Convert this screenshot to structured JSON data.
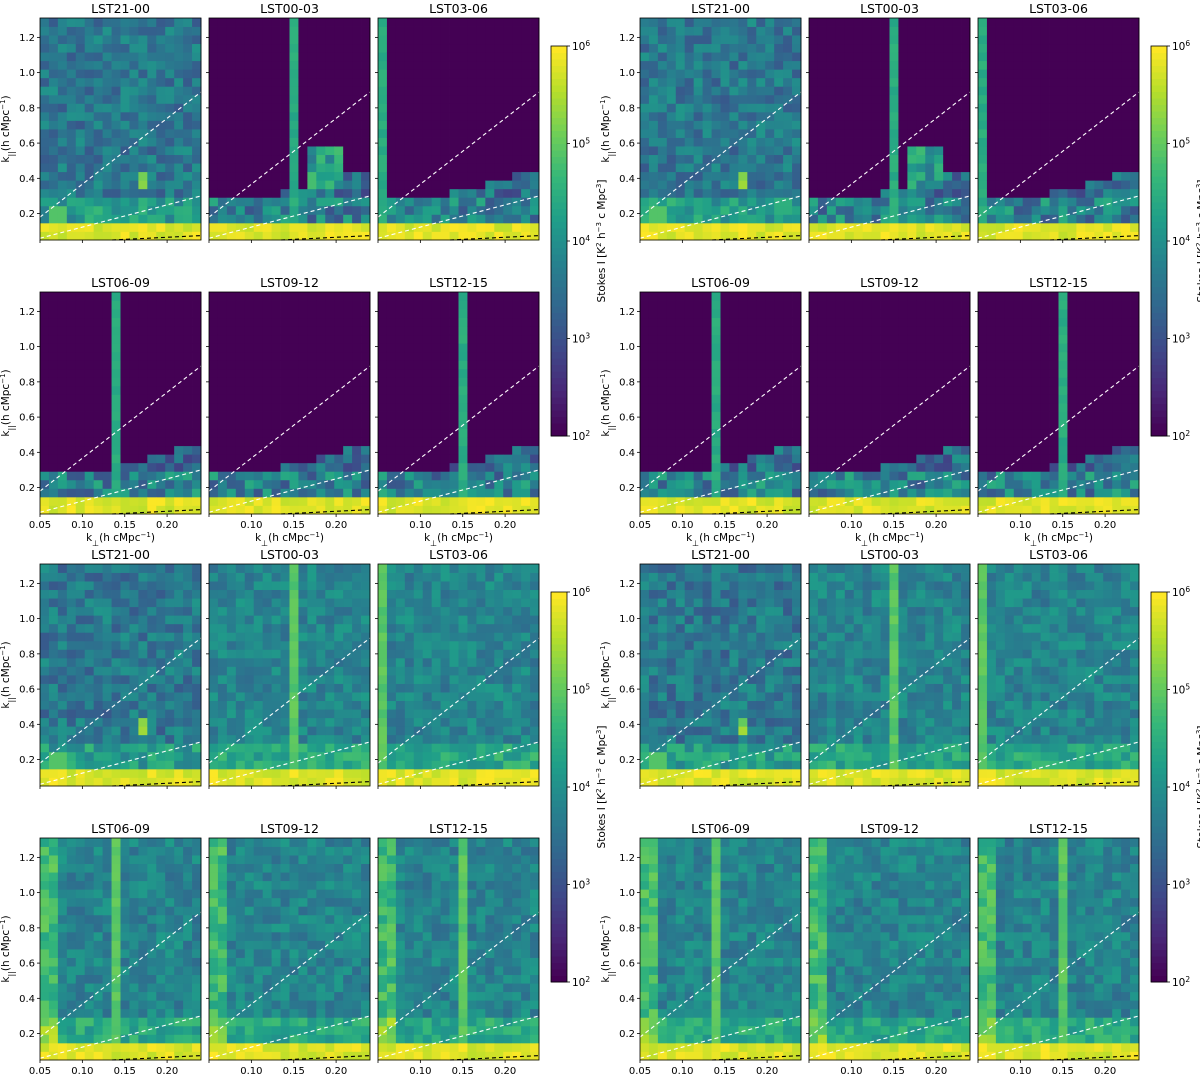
{
  "figure_description_none": "",
  "chart_data": {
    "type": "heatmap",
    "layout": "4 figures (2x2 arrangement), each a 2x3 grid of panels sharing a colorbar",
    "panel_titles": [
      "LST21-00",
      "LST00-03",
      "LST03-06",
      "LST06-09",
      "LST09-12",
      "LST12-15"
    ],
    "xlabel": "k_⊥(h cMpc⁻¹)",
    "xlabel_base": "k",
    "xlabel_sub": "⊥",
    "xlabel_rest": "(h cMpc",
    "xlabel_sup": "−1",
    "xlabel_close": ")",
    "ylabel_base": "k",
    "ylabel_sub": "||",
    "ylabel_rest": "(h cMpc",
    "ylabel_sup": "−1",
    "ylabel_close": ")",
    "xlim": [
      0.05,
      0.24
    ],
    "ylim": [
      0.05,
      1.31
    ],
    "xticks": [
      0.05,
      0.1,
      0.15,
      0.2
    ],
    "xtick_labels": [
      "0.05",
      "0.10",
      "0.15",
      "0.20"
    ],
    "yticks": [
      0.2,
      0.4,
      0.6,
      0.8,
      1.0,
      1.2
    ],
    "ytick_labels": [
      "0.2",
      "0.4",
      "0.6",
      "0.8",
      "1.0",
      "1.2"
    ],
    "colorbar": {
      "label": "Stokes I [K² h⁻³ c Mpc³]",
      "label_main": "Stokes I [K",
      "label_sup1": "2",
      "label_mid1": " h",
      "label_sup2": "−3",
      "label_mid2": " c Mpc",
      "label_sup3": "3",
      "label_end": "]",
      "scale": "log",
      "range": [
        100,
        1000000
      ],
      "tick_base": "10",
      "tick_exponents": [
        "2",
        "3",
        "4",
        "5",
        "6"
      ],
      "colormap": "viridis"
    },
    "lines": [
      {
        "name": "horizon-limit",
        "style": "white dashed",
        "x": [
          0.05,
          0.24
        ],
        "y": [
          0.18,
          0.89
        ]
      },
      {
        "name": "fov-limit",
        "style": "white dashed",
        "x": [
          0.05,
          0.24
        ],
        "y": [
          0.06,
          0.3
        ]
      },
      {
        "name": "buffer-line",
        "style": "black dashed",
        "x": [
          0.135,
          0.24
        ],
        "y": [
          0.05,
          0.075
        ]
      }
    ],
    "variants": [
      {
        "name": "top-left",
        "background_level": 2.0,
        "masked": true
      },
      {
        "name": "top-right",
        "background_level": 2.0,
        "masked": true
      },
      {
        "name": "bottom-left",
        "background_level": 3.8,
        "masked": false
      },
      {
        "name": "bottom-right",
        "background_level": 3.8,
        "masked": false
      }
    ]
  }
}
